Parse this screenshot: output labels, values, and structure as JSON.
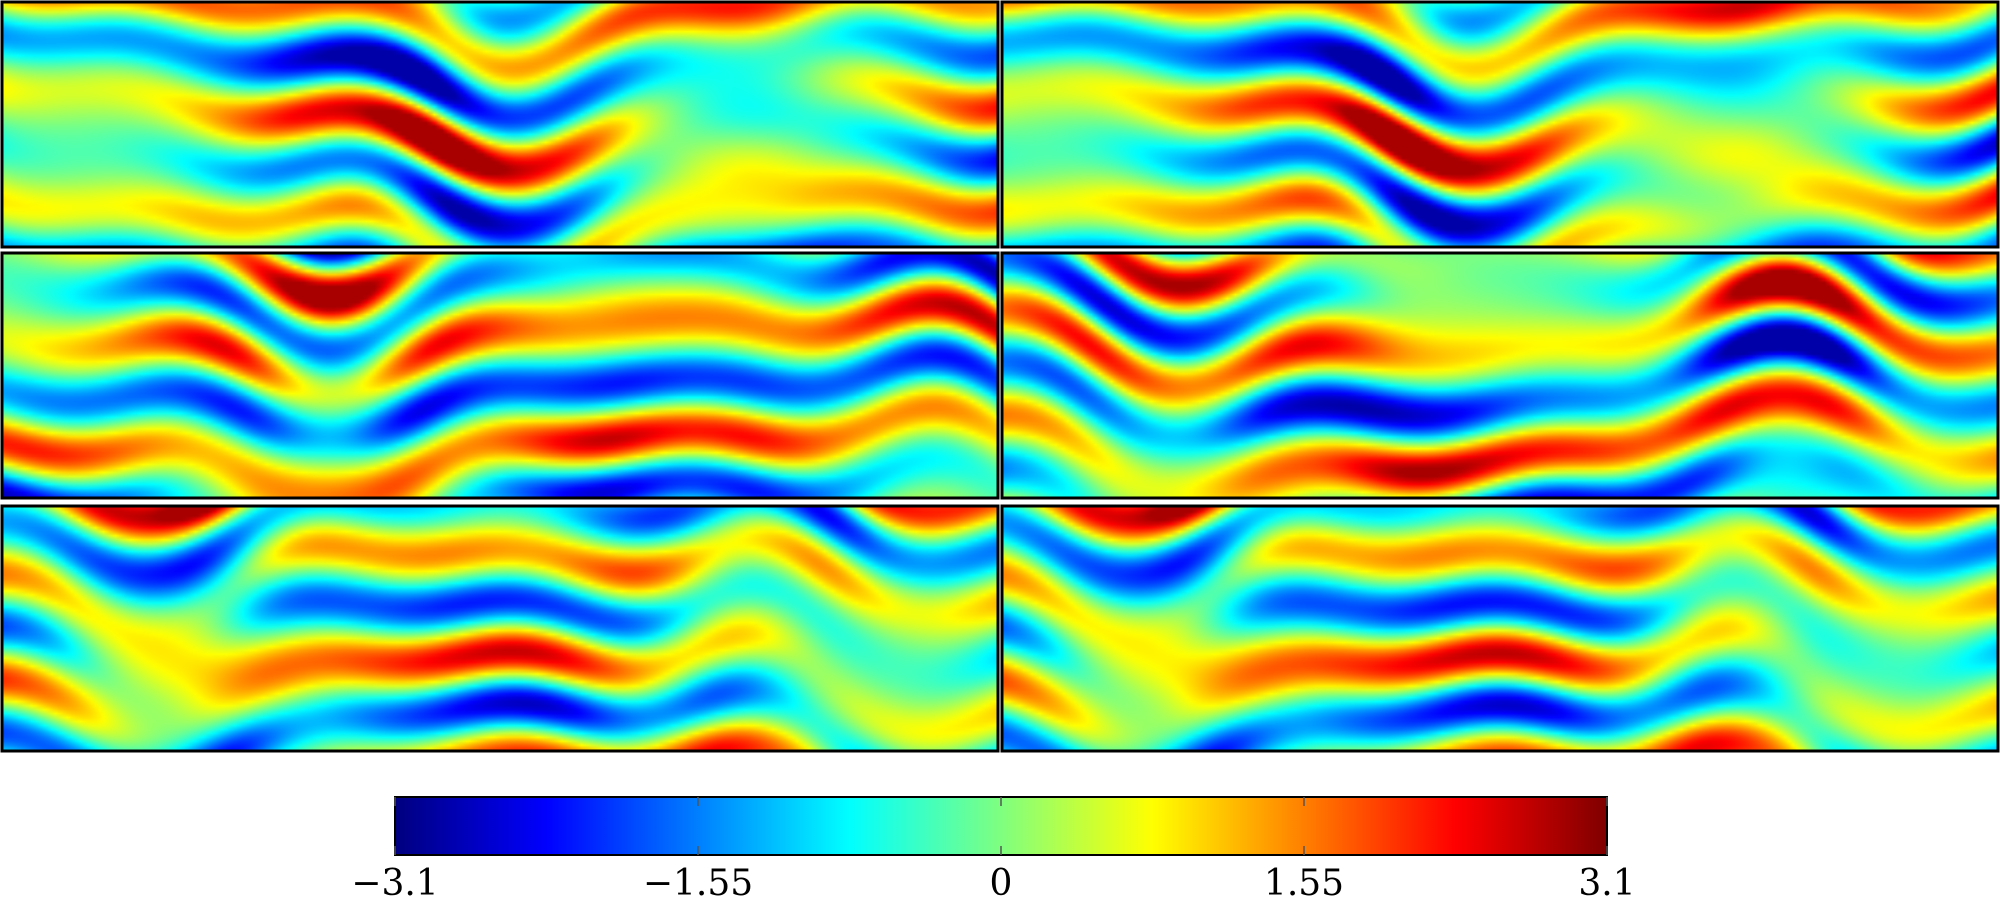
{
  "chart_data": {
    "type": "heatmap",
    "title": "",
    "grid": {
      "rows": 3,
      "cols": 2
    },
    "colormap": "jet",
    "colormap_stops": [
      "#00007f",
      "#0000ff",
      "#007fff",
      "#00ffff",
      "#7fff7f",
      "#ffff00",
      "#ff7f00",
      "#ff0000",
      "#7f0000"
    ],
    "panel_border_color": "#000000",
    "value_range": [
      -3.1,
      3.1
    ],
    "colorbar": {
      "orientation": "horizontal",
      "placement": "bottom",
      "ticks": [
        -3.1,
        -1.55,
        0,
        1.55,
        3.1
      ],
      "tick_labels": [
        "−3.1",
        "−1.55",
        "0",
        "1.55",
        "3.1"
      ]
    },
    "panels": [
      {
        "row": 0,
        "col": 0,
        "seed": 1.3,
        "phase": 0.0
      },
      {
        "row": 0,
        "col": 1,
        "seed": 1.3,
        "phase": 0.12
      },
      {
        "row": 1,
        "col": 0,
        "seed": 2.7,
        "phase": 0.0
      },
      {
        "row": 1,
        "col": 1,
        "seed": 2.7,
        "phase": 0.45
      },
      {
        "row": 2,
        "col": 0,
        "seed": 4.1,
        "phase": 0.0
      },
      {
        "row": 2,
        "col": 1,
        "seed": 4.1,
        "phase": 0.05
      }
    ]
  }
}
